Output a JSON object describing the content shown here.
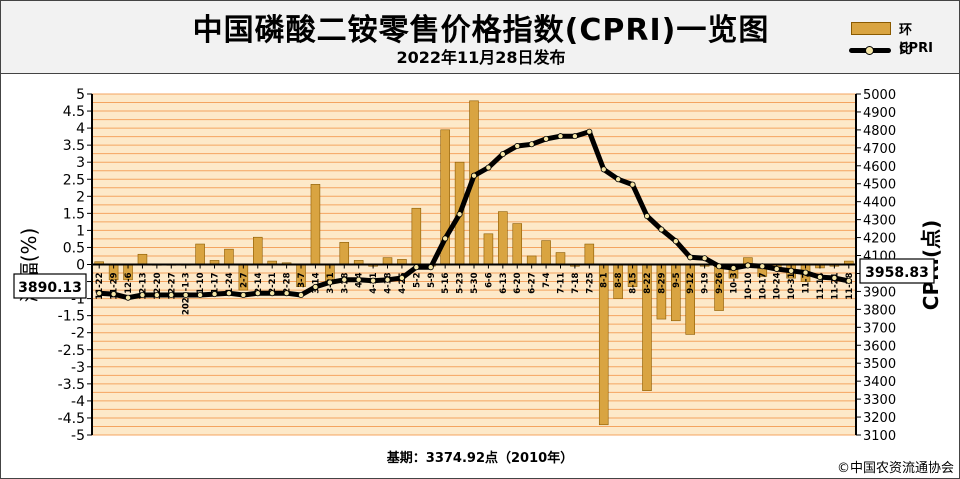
{
  "title": "中国磷酸二铵零售价格指数(CPRI)一览图",
  "subtitle": "2022年11月28日发布",
  "legend": {
    "bar_label": "环比",
    "line_label": "CPRI"
  },
  "footer": {
    "base_period": "基期：3374.92点（2010年）",
    "copyright": "©中国农资流通协会"
  },
  "colors": {
    "bar": "#d9a441",
    "plot_bg": "#fde9c9",
    "grid": "#f4a460",
    "line": "#000000",
    "marker": "#f5e6a8"
  },
  "chart_data": {
    "type": "bar+line",
    "ylabel_left": "涨幅(%)",
    "ylabel_right": "CPRI(点)",
    "ylim_left": [
      -5,
      5
    ],
    "ylim_right": [
      3100,
      5000
    ],
    "yticks_left": [
      "5",
      "4.5",
      "4",
      "3.5",
      "3",
      "2.5",
      "2",
      "1.5",
      "1",
      "0.5",
      "0",
      "-0.5",
      "-1",
      "-1.5",
      "-2",
      "-2.5",
      "-3",
      "-3.5",
      "-4",
      "-4.5",
      "-5"
    ],
    "yticks_right": [
      "5000",
      "4900",
      "4800",
      "4700",
      "4600",
      "4500",
      "4400",
      "4300",
      "4200",
      "4100",
      "4000",
      "3900",
      "3800",
      "3700",
      "3600",
      "3500",
      "3400",
      "3300",
      "3200",
      "3100"
    ],
    "categories": [
      "11-22",
      "11-29",
      "12-6",
      "12-13",
      "12-20",
      "12-27",
      "2022-1-3",
      "1-10",
      "1-17",
      "1-24",
      "2-7",
      "2-14",
      "2-21",
      "2-28",
      "3-7",
      "3-14",
      "3-21",
      "3-28",
      "4-4",
      "4-11",
      "4-18",
      "4-25",
      "5-2",
      "5-9",
      "5-16",
      "5-23",
      "5-30",
      "6-6",
      "6-13",
      "6-20",
      "6-27",
      "7-4",
      "7-11",
      "7-18",
      "7-25",
      "8-1",
      "8-8",
      "8-15",
      "8-22",
      "8-29",
      "9-5",
      "9-12",
      "9-19",
      "9-26",
      "10-3",
      "10-10",
      "10-17",
      "10-24",
      "10-31",
      "11-7",
      "11-14",
      "11-21",
      "11-28"
    ],
    "series": [
      {
        "name": "环比",
        "values": [
          0.08,
          -0.45,
          -0.45,
          0.3,
          -0.02,
          -0.02,
          0.0,
          0.6,
          0.12,
          0.45,
          -0.75,
          0.8,
          0.1,
          0.05,
          -0.65,
          2.35,
          -0.55,
          0.65,
          0.12,
          -0.05,
          0.2,
          0.15,
          1.65,
          -0.05,
          3.95,
          3.0,
          4.8,
          0.9,
          1.55,
          1.2,
          0.25,
          0.7,
          0.35,
          -0.05,
          0.6,
          -4.7,
          -1.0,
          -0.65,
          -3.7,
          -1.6,
          -1.65,
          -2.05,
          -0.05,
          -1.35,
          -0.4,
          0.2,
          -0.35,
          -0.15,
          -0.4,
          -0.5,
          -0.1,
          -0.05,
          0.1
        ]
      },
      {
        "name": "CPRI",
        "values": [
          3890,
          3885,
          3865,
          3880,
          3880,
          3880,
          3880,
          3880,
          3885,
          3890,
          3880,
          3890,
          3890,
          3890,
          3880,
          3925,
          3950,
          3965,
          3965,
          3960,
          3965,
          3975,
          4035,
          4035,
          4195,
          4330,
          4545,
          4590,
          4665,
          4710,
          4720,
          4750,
          4765,
          4765,
          4790,
          4580,
          4525,
          4495,
          4320,
          4245,
          4180,
          4090,
          4085,
          4040,
          4030,
          4045,
          4040,
          4025,
          4015,
          4005,
          3980,
          3975,
          3958.83
        ]
      }
    ],
    "callouts": {
      "left": "3890.13",
      "right": "3958.83"
    }
  }
}
